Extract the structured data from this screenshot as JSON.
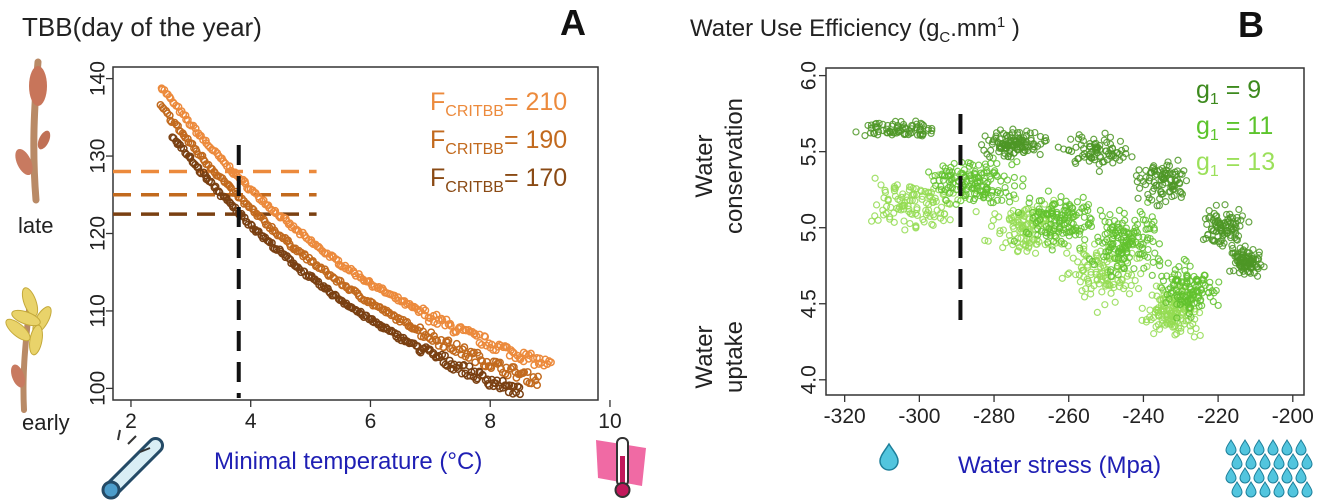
{
  "chart_data": [
    {
      "panel": "A",
      "type": "scatter",
      "title": "TBB(day of the year)",
      "xlabel": "Minimal temperature (°C)",
      "x_ticks": [
        "2",
        "4",
        "6",
        "8",
        "10"
      ],
      "y_ticks": [
        "100",
        "110",
        "120",
        "130",
        "140"
      ],
      "xlim": [
        1.7,
        9.8
      ],
      "ylim": [
        98.5,
        141.5
      ],
      "side_labels": [
        "late",
        "early"
      ],
      "legend": [
        {
          "prefix": "F",
          "sub": "CRITBB",
          "suffix": "= 210",
          "color": "#ec8a3c"
        },
        {
          "prefix": "F",
          "sub": "CRITBB",
          "suffix": "= 190",
          "color": "#c26a1e"
        },
        {
          "prefix": "F",
          "sub": "CRITBB",
          "suffix": "= 170",
          "color": "#8a4a14"
        }
      ],
      "series": [
        {
          "fcrit": 210,
          "color": "#ec8a3c",
          "x_range": [
            2.5,
            9.0
          ],
          "y_start": 139.0,
          "y_end": 103.0
        },
        {
          "fcrit": 190,
          "color": "#c26a1e",
          "x_range": [
            2.5,
            8.8
          ],
          "y_start": 136.5,
          "y_end": 101.0
        },
        {
          "fcrit": 170,
          "color": "#7a4012",
          "x_range": [
            2.7,
            8.5
          ],
          "y_start": 132.5,
          "y_end": 99.5
        }
      ],
      "reference_lines": {
        "vertical_x": 3.8,
        "horizontal_y": [
          128,
          125,
          122.5
        ],
        "horizontal_x_range": [
          1.7,
          5.1
        ]
      }
    },
    {
      "panel": "B",
      "type": "scatter",
      "title": "Water Use Efficiency",
      "title_units": {
        "prefix": "(g",
        "sub": "C",
        "mid": ".mm",
        "sup": "1",
        "suffix": " )"
      },
      "xlabel": "Water stress (Mpa)",
      "x_ticks": [
        "-320",
        "-300",
        "-280",
        "-260",
        "-240",
        "-220",
        "-200"
      ],
      "y_ticks": [
        "4.0",
        "4.5",
        "5.0",
        "5.5",
        "6.0"
      ],
      "xlim": [
        -325,
        -197
      ],
      "ylim": [
        3.9,
        6.05
      ],
      "side_labels": [
        [
          "Water",
          "conservation"
        ],
        [
          "Water",
          "uptake"
        ]
      ],
      "legend": [
        {
          "prefix": "g",
          "sub": "1",
          "suffix": " = 9",
          "color": "#3d8a1e"
        },
        {
          "prefix": "g",
          "sub": "1",
          "suffix": " = 11",
          "color": "#5cc42c"
        },
        {
          "prefix": "g",
          "sub": "1",
          "suffix": " = 13",
          "color": "#9be05a"
        }
      ],
      "series": [
        {
          "g1": 9,
          "color": "#4e9626",
          "center_y": 5.4
        },
        {
          "g1": 11,
          "color": "#62c22e",
          "center_y": 4.95
        },
        {
          "g1": 13,
          "color": "#94dc52",
          "center_y": 4.75
        }
      ],
      "reference_lines": {
        "vertical_x": -289
      }
    }
  ]
}
